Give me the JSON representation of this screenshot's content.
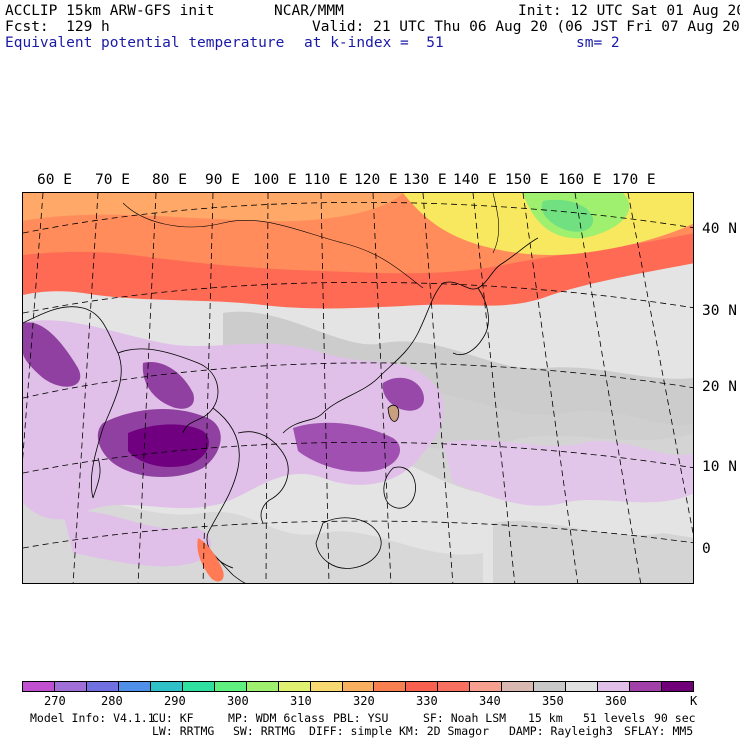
{
  "header": {
    "model": "ACCLIP 15km ARW-GFS init",
    "org": "NCAR/MMM",
    "init": "Init: 12 UTC Sat 01 Aug 20",
    "fcst": "Fcst:  129 h",
    "valid": "Valid: 21 UTC Thu 06 Aug 20 (06 JST Fri 07 Aug 20)",
    "field": "Equivalent potential temperature",
    "level": "at k-index =  51",
    "smooth": "sm= 2"
  },
  "map": {
    "lon_labels": [
      "60 E",
      "70 E",
      "80 E",
      "90 E",
      "100 E",
      "110 E",
      "120 E",
      "130 E",
      "140 E",
      "150 E",
      "160 E",
      "170 E"
    ],
    "lat_labels": [
      "40 N",
      "30 N",
      "20 N",
      "10 N",
      "0"
    ],
    "colors": {
      "ocean_bg": "#eeeeee",
      "hot_red": "#ff5a4a",
      "orange": "#ff8c55",
      "yellow": "#f8e860",
      "green": "#90f070",
      "gray": "#c8c8c8",
      "lightgray": "#dcdcdc",
      "lilac": "#e0c0e8",
      "purple": "#9040a0",
      "deep_purple": "#700080"
    }
  },
  "colorbar": {
    "colors": [
      "#c050d0",
      "#a070d8",
      "#7070e0",
      "#5090e8",
      "#30c0c8",
      "#30e0a0",
      "#60f080",
      "#a0f070",
      "#e0f070",
      "#f8d870",
      "#f8b060",
      "#f88050",
      "#f86050",
      "#f87060",
      "#f8a090",
      "#d8b8b0",
      "#c8c8c8",
      "#e0e0e0",
      "#e0c0e8",
      "#a040a8",
      "#700078"
    ],
    "labels": [
      "270",
      "280",
      "290",
      "300",
      "310",
      "320",
      "330",
      "340",
      "350",
      "360"
    ],
    "unit": "K"
  },
  "footer": {
    "line1": [
      "Model Info: V4.1.1",
      "CU: KF",
      "MP: WDM 6class",
      "PBL: YSU",
      "SF: Noah LSM",
      "15 km",
      "51 levels",
      "90 sec"
    ],
    "line2": [
      "LW: RRTMG",
      "SW: RRTMG",
      "DIFF: simple",
      "KM: 2D Smagor",
      "DAMP: Rayleigh3",
      "SFLAY: MM5"
    ]
  }
}
